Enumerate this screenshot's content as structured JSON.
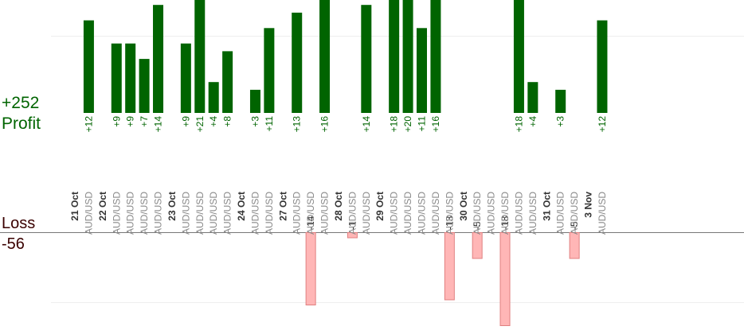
{
  "summary": {
    "profit_total": "+252",
    "profit_label": "Profit",
    "loss_label": "Loss",
    "loss_total": "-56"
  },
  "chart_data": {
    "type": "bar",
    "colors": {
      "profit": "#006400",
      "loss": "#ffb6b6",
      "loss_border": "#e08080",
      "date": "#333333",
      "pair": "#888888"
    },
    "grid": true,
    "columns": [
      {
        "date": "21 Oct",
        "pair": "",
        "value": null
      },
      {
        "date": "",
        "pair": "AUD/USD",
        "value": 12
      },
      {
        "date": "22 Oct",
        "pair": "",
        "value": null
      },
      {
        "date": "",
        "pair": "AUD/USD",
        "value": 9
      },
      {
        "date": "",
        "pair": "AUD/USD",
        "value": 9
      },
      {
        "date": "",
        "pair": "AUD/USD",
        "value": 7
      },
      {
        "date": "",
        "pair": "AUD/USD",
        "value": 14
      },
      {
        "date": "23 Oct",
        "pair": "",
        "value": null
      },
      {
        "date": "",
        "pair": "AUD/USD",
        "value": 9
      },
      {
        "date": "",
        "pair": "AUD/USD",
        "value": 21
      },
      {
        "date": "",
        "pair": "AUD/USD",
        "value": 4
      },
      {
        "date": "",
        "pair": "AUD/USD",
        "value": 8
      },
      {
        "date": "24 Oct",
        "pair": "",
        "value": null
      },
      {
        "date": "",
        "pair": "AUD/USD",
        "value": 3
      },
      {
        "date": "",
        "pair": "AUD/USD",
        "value": 11
      },
      {
        "date": "27 Oct",
        "pair": "",
        "value": null
      },
      {
        "date": "",
        "pair": "AUD/USD",
        "value": 13
      },
      {
        "date": "",
        "pair": "AUD/USD",
        "value": -14
      },
      {
        "date": "",
        "pair": "AUD/USD",
        "value": 16
      },
      {
        "date": "28 Oct",
        "pair": "",
        "value": null
      },
      {
        "date": "",
        "pair": "AUD/USD",
        "value": -1
      },
      {
        "date": "",
        "pair": "AUD/USD",
        "value": 14
      },
      {
        "date": "29 Oct",
        "pair": "",
        "value": null
      },
      {
        "date": "",
        "pair": "AUD/USD",
        "value": 18
      },
      {
        "date": "",
        "pair": "AUD/USD",
        "value": 20
      },
      {
        "date": "",
        "pair": "AUD/USD",
        "value": 11
      },
      {
        "date": "",
        "pair": "AUD/USD",
        "value": 16
      },
      {
        "date": "",
        "pair": "AUD/USD",
        "value": -13
      },
      {
        "date": "30 Oct",
        "pair": "",
        "value": null
      },
      {
        "date": "",
        "pair": "AUD/USD",
        "value": -5
      },
      {
        "date": "",
        "pair": "AUD/USD",
        "value": null
      },
      {
        "date": "",
        "pair": "AUD/USD",
        "value": -18
      },
      {
        "date": "",
        "pair": "AUD/USD",
        "value": 18
      },
      {
        "date": "",
        "pair": "AUD/USD",
        "value": 4
      },
      {
        "date": "31 Oct",
        "pair": "",
        "value": null
      },
      {
        "date": "",
        "pair": "AUD/USD",
        "value": 3
      },
      {
        "date": "",
        "pair": "AUD/USD",
        "value": -5
      },
      {
        "date": "3 Nov",
        "pair": "",
        "value": null
      },
      {
        "date": "",
        "pair": "AUD/USD",
        "value": 12
      }
    ]
  }
}
